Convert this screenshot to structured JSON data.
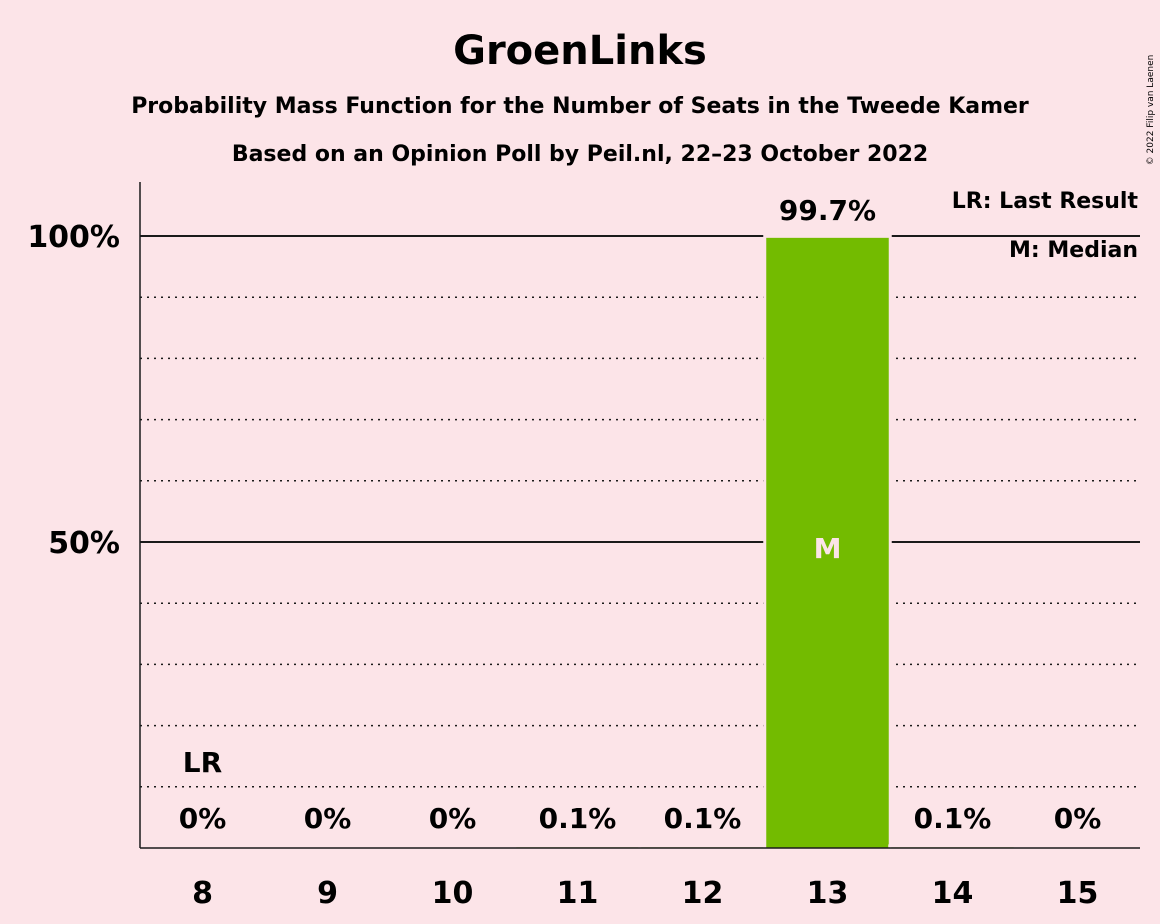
{
  "chart_data": {
    "type": "bar",
    "title": "GroenLinks",
    "subtitle": "Probability Mass Function for the Number of Seats in the Tweede Kamer",
    "subtitle2": "Based on an Opinion Poll by Peil.nl, 22–23 October 2022",
    "categories": [
      "8",
      "9",
      "10",
      "11",
      "12",
      "13",
      "14",
      "15"
    ],
    "values": [
      0,
      0,
      0,
      0.1,
      0.1,
      99.7,
      0.1,
      0
    ],
    "value_labels": [
      "0%",
      "0%",
      "0%",
      "0.1%",
      "0.1%",
      "99.7%",
      "0.1%",
      "0%"
    ],
    "ylim": [
      0,
      100
    ],
    "yticks": [
      {
        "value": 50,
        "label": "50%"
      },
      {
        "value": 100,
        "label": "100%"
      }
    ],
    "gridlines": "dotted every 10%, solid at 50% and 100%",
    "last_result": {
      "category": "8",
      "marker": "LR"
    },
    "median": {
      "category": "13",
      "marker": "M"
    },
    "legend": {
      "placement": "top-right",
      "items": [
        "LR: Last Result",
        "M: Median"
      ]
    },
    "bar_color": "#73bb00",
    "copyright": "© 2022 Filip van Laenen"
  }
}
